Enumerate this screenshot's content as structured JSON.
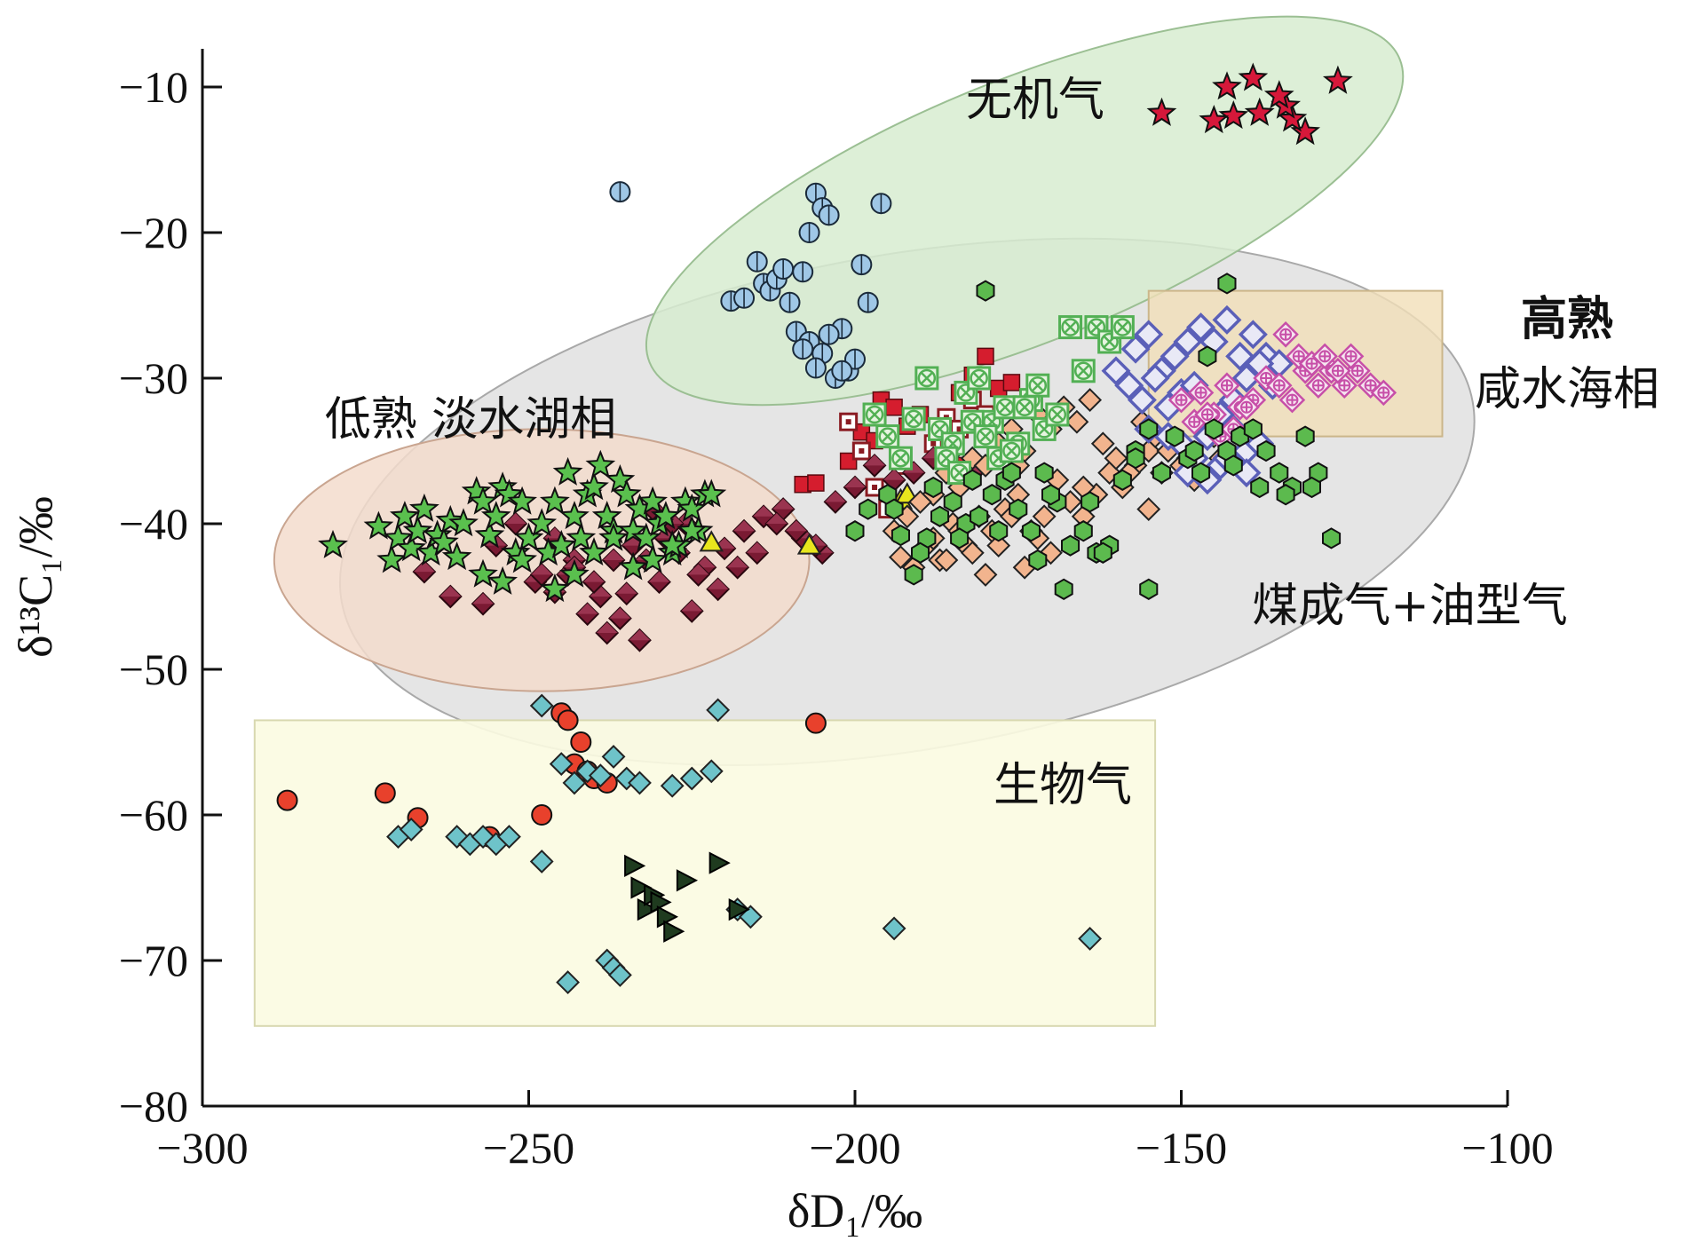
{
  "chart_data": {
    "type": "scatter",
    "title": "",
    "xlabel": "δD₁/‰",
    "ylabel": "δ¹³C₁/‰",
    "xlim": [
      -300,
      -100
    ],
    "ylim": [
      -80,
      -5
    ],
    "xticks": [
      -300,
      -250,
      -200,
      -150,
      -100
    ],
    "yticks": [
      -10,
      -20,
      -30,
      -40,
      -50,
      -60,
      -70,
      -80
    ],
    "grid": false,
    "legend": "none",
    "colors": {
      "inorganic_region": "#d7ecd0",
      "thermogenic_region": "#dcdcdc",
      "lowmature_region": "#f3dccd",
      "highmature_region": "#f1dfb8",
      "biogenic_region": "#fbfbe1"
    },
    "regions": [
      {
        "label": "无机气",
        "shape": "ellipse",
        "cx": -174,
        "cy": -18.5,
        "rx": 62,
        "ry": 9,
        "rotation": -22
      },
      {
        "label": "煤成气+油型气",
        "shape": "ellipse",
        "cx": -192,
        "cy": -38.5,
        "rx": 88,
        "ry": 17,
        "rotation": -10
      },
      {
        "label": "低熟 淡水湖相",
        "shape": "ellipse",
        "cx": -248,
        "cy": -42.5,
        "rx": 41,
        "ry": 9,
        "rotation": 0
      },
      {
        "label": "高熟 咸水海相",
        "shape": "rect",
        "x1": -155,
        "x2": -110,
        "y1": -24,
        "y2": -34
      },
      {
        "label": "生物气",
        "shape": "rect",
        "x1": -292,
        "x2": -154,
        "y1": -53.5,
        "y2": -74.5
      }
    ],
    "series": [
      {
        "marker": "star",
        "color": "#d6183a",
        "x": [
          -126,
          -131,
          -133,
          -134,
          -135,
          -138,
          -139,
          -142,
          -143,
          -145,
          -153
        ],
        "y": [
          -9.6,
          -13.1,
          -12.2,
          -11.3,
          -10.6,
          -11.8,
          -9.4,
          -12.0,
          -10.0,
          -12.3,
          -11.8
        ]
      },
      {
        "marker": "circle-split",
        "color": "#9fc7e6",
        "x": [
          -236,
          -219,
          -217,
          -215,
          -214,
          -213,
          -212,
          -211,
          -210,
          -208,
          -207,
          -206,
          -205,
          -204,
          -209,
          -207,
          -205,
          -202,
          -201,
          -200,
          -199,
          -198,
          -196,
          -208,
          -206,
          -204,
          -203,
          -202
        ],
        "y": [
          -17.2,
          -24.7,
          -24.5,
          -22.0,
          -23.5,
          -24.0,
          -23.2,
          -22.5,
          -24.8,
          -22.7,
          -20.0,
          -17.3,
          -18.3,
          -18.8,
          -26.8,
          -27.5,
          -28.3,
          -26.6,
          -29.5,
          -28.7,
          -22.2,
          -24.8,
          -18.0,
          -28.0,
          -29.3,
          -27.0,
          -30.0,
          -29.5
        ]
      },
      {
        "marker": "square",
        "color": "#d51d2e",
        "x": [
          -208,
          -206,
          -201,
          -199,
          -197,
          -196,
          -194,
          -192,
          -190,
          -184,
          -182,
          -180,
          -178,
          -176,
          -185,
          -183,
          -181
        ],
        "y": [
          -37.3,
          -37.2,
          -35.7,
          -33.7,
          -34.3,
          -31.5,
          -32.0,
          -33.3,
          -32.5,
          -31.0,
          -29.8,
          -28.5,
          -30.7,
          -30.3,
          -34.0,
          -36.0,
          -33.0
        ]
      },
      {
        "marker": "square-open",
        "color": "#8a1b22",
        "x": [
          -201,
          -199,
          -197,
          -195,
          -193,
          -188,
          -186,
          -184,
          -182,
          -180,
          -178
        ],
        "y": [
          -33.0,
          -35.0,
          -37.5,
          -39.0,
          -36.0,
          -34.5,
          -32.7,
          -33.5,
          -31.5,
          -32.5,
          -35.0
        ]
      },
      {
        "marker": "diamond-half",
        "color": "#7a1a33",
        "x": [
          -266,
          -262,
          -257,
          -255,
          -252,
          -249,
          -246,
          -244,
          -241,
          -238,
          -235,
          -232,
          -229,
          -226,
          -223,
          -220,
          -217,
          -214,
          -211,
          -208,
          -205,
          -248,
          -243,
          -239,
          -236,
          -233,
          -230,
          -227,
          -224,
          -221,
          -218,
          -215,
          -212,
          -209,
          -206,
          -203,
          -200,
          -197,
          -194,
          -191,
          -188,
          -185,
          -182,
          -228,
          -231,
          -234,
          -237,
          -240,
          -243,
          -246,
          -225
        ],
        "y": [
          -43.3,
          -45.0,
          -45.5,
          -41.5,
          -40.0,
          -44.0,
          -41.0,
          -43.5,
          -46.2,
          -47.5,
          -44.8,
          -42.5,
          -41.0,
          -40.0,
          -43.0,
          -41.7,
          -40.5,
          -39.5,
          -39.0,
          -41.0,
          -42.0,
          -43.5,
          -42.5,
          -45.0,
          -46.5,
          -48.0,
          -44.0,
          -42.0,
          -43.5,
          -44.5,
          -43.0,
          -42.0,
          -40.0,
          -40.5,
          -41.5,
          -38.5,
          -37.5,
          -36.0,
          -37.0,
          -36.5,
          -35.5,
          -34.5,
          -36.5,
          -40.0,
          -39.0,
          -41.5,
          -42.5,
          -44.0,
          -43.0,
          -44.7,
          -46.0
        ]
      },
      {
        "marker": "star",
        "color": "#5ac04e",
        "x": [
          -280,
          -273,
          -271,
          -270,
          -269,
          -268,
          -267,
          -266,
          -265,
          -264,
          -263,
          -262,
          -261,
          -260,
          -258,
          -257,
          -256,
          -255,
          -254,
          -253,
          -252,
          -251,
          -250,
          -248,
          -247,
          -246,
          -245,
          -244,
          -243,
          -242,
          -241,
          -240,
          -239,
          -238,
          -237,
          -236,
          -235,
          -234,
          -233,
          -232,
          -231,
          -230,
          -229,
          -228,
          -227,
          -226,
          -225,
          -224,
          -223,
          -257,
          -254,
          -251,
          -246,
          -243,
          -240,
          -237,
          -234,
          -231,
          -228,
          -225,
          -222
        ],
        "y": [
          -41.5,
          -40.2,
          -42.5,
          -41.0,
          -39.5,
          -41.7,
          -40.5,
          -39.0,
          -42.0,
          -40.8,
          -41.3,
          -39.8,
          -42.3,
          -40.0,
          -37.8,
          -38.5,
          -40.8,
          -39.5,
          -37.5,
          -38.0,
          -42.0,
          -38.5,
          -41.0,
          -40.0,
          -42.0,
          -38.5,
          -41.5,
          -36.5,
          -39.5,
          -41.0,
          -38.0,
          -37.5,
          -36.0,
          -39.5,
          -40.5,
          -37.0,
          -38.0,
          -40.5,
          -39.0,
          -41.0,
          -38.5,
          -40.0,
          -39.5,
          -42.0,
          -41.5,
          -38.5,
          -39.0,
          -40.5,
          -38.0,
          -43.5,
          -44.0,
          -42.5,
          -44.5,
          -43.5,
          -42.0,
          -41.0,
          -43.0,
          -42.5,
          -41.5,
          -40.5,
          -38.0
        ]
      },
      {
        "marker": "triangle-up",
        "color": "#e8e61d",
        "x": [
          -222,
          -207,
          -193,
          -192
        ],
        "y": [
          -41.3,
          -41.5,
          -38.4,
          -38.0
        ]
      },
      {
        "marker": "diamond",
        "color": "#f2b48e",
        "x": [
          -193,
          -191,
          -189,
          -187,
          -185,
          -183,
          -181,
          -179,
          -177,
          -175,
          -173,
          -171,
          -169,
          -167,
          -165,
          -163,
          -161,
          -159,
          -157,
          -155,
          -153,
          -151,
          -149,
          -147,
          -145,
          -188,
          -186,
          -184,
          -182,
          -180,
          -178,
          -176,
          -174,
          -172,
          -170,
          -168,
          -166,
          -164,
          -162,
          -160,
          -158,
          -156,
          -154,
          -152,
          -150,
          -148,
          -146,
          -144,
          -194,
          -192,
          -190,
          -188,
          -186,
          -184,
          -182,
          -180,
          -178,
          -176,
          -174,
          -172,
          -170,
          -185,
          -175,
          -165,
          -155
        ],
        "y": [
          -42.3,
          -43.0,
          -41.5,
          -42.5,
          -40.0,
          -41.5,
          -39.5,
          -40.5,
          -39.0,
          -38.0,
          -40.5,
          -39.5,
          -37.0,
          -38.5,
          -39.5,
          -38.0,
          -36.5,
          -37.5,
          -36.0,
          -35.0,
          -36.5,
          -34.5,
          -35.5,
          -33.5,
          -34.0,
          -38.0,
          -36.5,
          -37.5,
          -35.5,
          -36.0,
          -34.5,
          -33.5,
          -35.0,
          -32.5,
          -33.5,
          -32.0,
          -33.0,
          -31.5,
          -34.5,
          -35.5,
          -36.5,
          -33.0,
          -34.0,
          -35.0,
          -36.0,
          -37.0,
          -33.5,
          -35.5,
          -40.5,
          -39.5,
          -38.5,
          -41.0,
          -42.5,
          -40.5,
          -42.0,
          -43.5,
          -41.5,
          -39.5,
          -43.0,
          -41.0,
          -42.0,
          -35.0,
          -36.0,
          -37.5,
          -39.0
        ]
      },
      {
        "marker": "diamond-open",
        "color": "#5a5fb8",
        "x": [
          -160,
          -157,
          -155,
          -153,
          -151,
          -149,
          -147,
          -145,
          -143,
          -141,
          -139,
          -137,
          -135,
          -158,
          -156,
          -154,
          -152,
          -150,
          -148,
          -146,
          -144,
          -142,
          -140,
          -138,
          -136,
          -150,
          -148,
          -146,
          -144,
          -142,
          -140,
          -138,
          -155,
          -152,
          -149,
          -146,
          -143,
          -140
        ],
        "y": [
          -29.5,
          -28.0,
          -27.0,
          -29.5,
          -28.5,
          -27.5,
          -26.5,
          -27.5,
          -26.0,
          -28.5,
          -27.0,
          -28.5,
          -29.0,
          -30.5,
          -31.5,
          -30.0,
          -32.0,
          -31.0,
          -30.5,
          -33.0,
          -32.5,
          -31.5,
          -30.0,
          -29.0,
          -30.5,
          -34.5,
          -35.5,
          -34.0,
          -36.0,
          -33.5,
          -35.0,
          -34.5,
          -33.5,
          -34.0,
          -36.5,
          -37.0,
          -35.5,
          -36.5
        ]
      },
      {
        "marker": "diamond-cross",
        "color": "#c74fa8",
        "x": [
          -150,
          -147,
          -145,
          -143,
          -141,
          -139,
          -137,
          -135,
          -133,
          -131,
          -129,
          -127,
          -125,
          -123,
          -121,
          -119,
          -134,
          -132,
          -130,
          -128,
          -126,
          -124,
          -148,
          -146,
          -144,
          -142,
          -140
        ],
        "y": [
          -31.5,
          -31.0,
          -32.5,
          -30.5,
          -32.0,
          -31.5,
          -30.0,
          -30.5,
          -31.5,
          -29.5,
          -30.5,
          -29.5,
          -30.5,
          -29.5,
          -30.5,
          -31.0,
          -27.0,
          -28.5,
          -29.0,
          -28.5,
          -29.5,
          -28.5,
          -33.0,
          -32.5,
          -34.0,
          -33.5,
          -32.0
        ]
      },
      {
        "marker": "square-cross",
        "color": "#52b054",
        "x": [
          -197,
          -195,
          -193,
          -191,
          -189,
          -187,
          -185,
          -183,
          -181,
          -179,
          -177,
          -175,
          -173,
          -171,
          -169,
          -167,
          -165,
          -163,
          -161,
          -159,
          -186,
          -184,
          -182,
          -180,
          -178,
          -176,
          -174,
          -172
        ],
        "y": [
          -32.5,
          -34.0,
          -35.5,
          -32.8,
          -30.0,
          -33.5,
          -34.5,
          -31.0,
          -30.0,
          -33.0,
          -32.0,
          -34.5,
          -31.5,
          -33.5,
          -32.5,
          -26.5,
          -29.5,
          -26.5,
          -27.5,
          -26.5,
          -35.5,
          -36.5,
          -33.0,
          -34.0,
          -35.5,
          -35.0,
          -32.0,
          -30.5
        ]
      },
      {
        "marker": "hexagon",
        "color": "#5cba4e",
        "x": [
          -200,
          -198,
          -195,
          -193,
          -191,
          -189,
          -187,
          -185,
          -183,
          -181,
          -179,
          -177,
          -175,
          -173,
          -171,
          -169,
          -167,
          -165,
          -163,
          -161,
          -159,
          -157,
          -155,
          -153,
          -151,
          -149,
          -147,
          -145,
          -143,
          -141,
          -139,
          -137,
          -135,
          -133,
          -131,
          -129,
          -127,
          -180,
          -168,
          -162,
          -155,
          -148,
          -142,
          -138,
          -134,
          -130,
          -157,
          -164,
          -170,
          -176,
          -182,
          -188,
          -194,
          -143,
          -146,
          -190,
          -184,
          -178,
          -172
        ],
        "y": [
          -40.5,
          -39.0,
          -38.0,
          -40.8,
          -43.5,
          -41.0,
          -39.5,
          -38.5,
          -40.0,
          -39.5,
          -38.0,
          -37.0,
          -39.0,
          -40.5,
          -36.5,
          -38.5,
          -41.5,
          -40.5,
          -42.0,
          -41.5,
          -37.0,
          -35.0,
          -33.5,
          -36.5,
          -34.0,
          -35.5,
          -36.5,
          -33.5,
          -35.0,
          -34.0,
          -33.5,
          -35.0,
          -36.5,
          -37.5,
          -34.0,
          -36.5,
          -41.0,
          -24.0,
          -44.5,
          -42.0,
          -44.5,
          -35.0,
          -36.0,
          -37.5,
          -38.0,
          -37.5,
          -35.5,
          -38.5,
          -38.0,
          -36.5,
          -37.0,
          -37.5,
          -39.0,
          -23.5,
          -28.5,
          -42.0,
          -41.0,
          -40.5,
          -42.5
        ]
      },
      {
        "marker": "circle",
        "color": "#e8412c",
        "x": [
          -287,
          -272,
          -267,
          -256,
          -248,
          -245,
          -244,
          -243,
          -242,
          -241,
          -240,
          -238,
          -206
        ],
        "y": [
          -59.0,
          -58.5,
          -60.2,
          -61.5,
          -60.0,
          -53.0,
          -53.5,
          -56.5,
          -55.0,
          -57.0,
          -57.5,
          -57.8,
          -53.7
        ]
      },
      {
        "marker": "diamond",
        "color": "#6ec3c9",
        "x": [
          -248,
          -245,
          -243,
          -241,
          -239,
          -237,
          -235,
          -233,
          -228,
          -225,
          -222,
          -221,
          -270,
          -268,
          -261,
          -259,
          -257,
          -255,
          -253,
          -248,
          -244,
          -238,
          -237,
          -236,
          -218,
          -216,
          -194,
          -164
        ],
        "y": [
          -52.5,
          -56.5,
          -57.8,
          -57.0,
          -57.3,
          -56.0,
          -57.5,
          -57.8,
          -58.0,
          -57.5,
          -57.0,
          -52.8,
          -61.5,
          -61.0,
          -61.5,
          -62.0,
          -61.5,
          -62.0,
          -61.5,
          -63.2,
          -71.5,
          -70.0,
          -70.5,
          -71.0,
          -66.5,
          -67.0,
          -67.8,
          -68.5
        ]
      },
      {
        "marker": "triangle-right",
        "color": "#1f3b1f",
        "x": [
          -234,
          -233,
          -232,
          -231,
          -230,
          -229,
          -228,
          -226,
          -221,
          -218
        ],
        "y": [
          -63.5,
          -65.0,
          -66.5,
          -65.5,
          -66.0,
          -67.0,
          -68.0,
          -64.5,
          -63.3,
          -66.5
        ]
      }
    ]
  }
}
